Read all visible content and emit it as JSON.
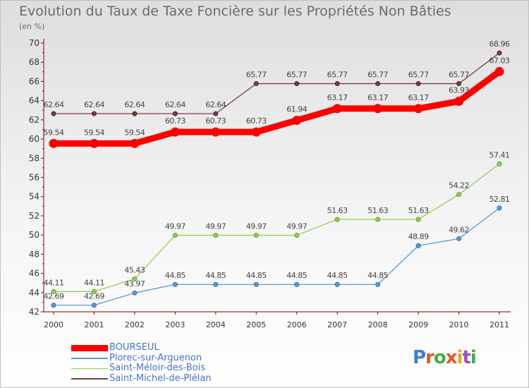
{
  "chart_data": {
    "type": "line",
    "title": "Evolution du Taux de Taxe Foncière sur les Propriétés Non Bâties",
    "ylabel": "(en %)",
    "xlabel": "",
    "x": [
      "2000",
      "2001",
      "2002",
      "2003",
      "2004",
      "2005",
      "2006",
      "2007",
      "2008",
      "2009",
      "2010",
      "2011"
    ],
    "ylim": [
      42,
      70
    ],
    "yticks": [
      42,
      44,
      46,
      48,
      50,
      52,
      54,
      56,
      58,
      60,
      62,
      64,
      66,
      68,
      70
    ],
    "grid": false,
    "legend_position": "bottom",
    "series": [
      {
        "name": "BOURSEUL",
        "color": "#ff0000",
        "values": [
          59.54,
          59.54,
          59.54,
          60.73,
          60.73,
          60.73,
          61.94,
          63.17,
          63.17,
          63.17,
          63.93,
          67.03
        ],
        "labels": [
          "59.54",
          "59.54",
          "59.54",
          "60.73",
          "60.73",
          "60.73",
          "61.94",
          "63.17",
          "63.17",
          "63.17",
          "63.93",
          "67.03"
        ]
      },
      {
        "name": "Plorec-sur-Arguenon",
        "color": "#5b9bd5",
        "values": [
          42.69,
          42.69,
          43.97,
          44.85,
          44.85,
          44.85,
          44.85,
          44.85,
          44.85,
          48.89,
          49.62,
          52.81
        ],
        "labels": [
          "42.69",
          "42.69",
          "43.97",
          "44.85",
          "44.85",
          "44.85",
          "44.85",
          "44.85",
          "44.85",
          "48.89",
          "49.62",
          "52.81"
        ]
      },
      {
        "name": "Saint-Méloir-des-Bois",
        "color": "#92d050",
        "values": [
          44.11,
          44.11,
          45.43,
          49.97,
          49.97,
          49.97,
          49.97,
          51.63,
          51.63,
          51.63,
          54.22,
          57.41
        ],
        "labels": [
          "44.11",
          "44.11",
          "45.43",
          "49.97",
          "49.97",
          "49.97",
          "49.97",
          "51.63",
          "51.63",
          "51.63",
          "54.22",
          "57.41"
        ]
      },
      {
        "name": "Saint-Michel-de-Plélan",
        "color": "#7b3f3f",
        "values": [
          62.64,
          62.64,
          62.64,
          62.64,
          62.64,
          65.77,
          65.77,
          65.77,
          65.77,
          65.77,
          65.77,
          68.96
        ],
        "labels": [
          "62.64",
          "62.64",
          "62.64",
          "62.64",
          "62.64",
          "65.77",
          "65.77",
          "65.77",
          "65.77",
          "65.77",
          "65.77",
          "68.96"
        ]
      }
    ]
  },
  "brand": {
    "name": "Proxiti"
  }
}
